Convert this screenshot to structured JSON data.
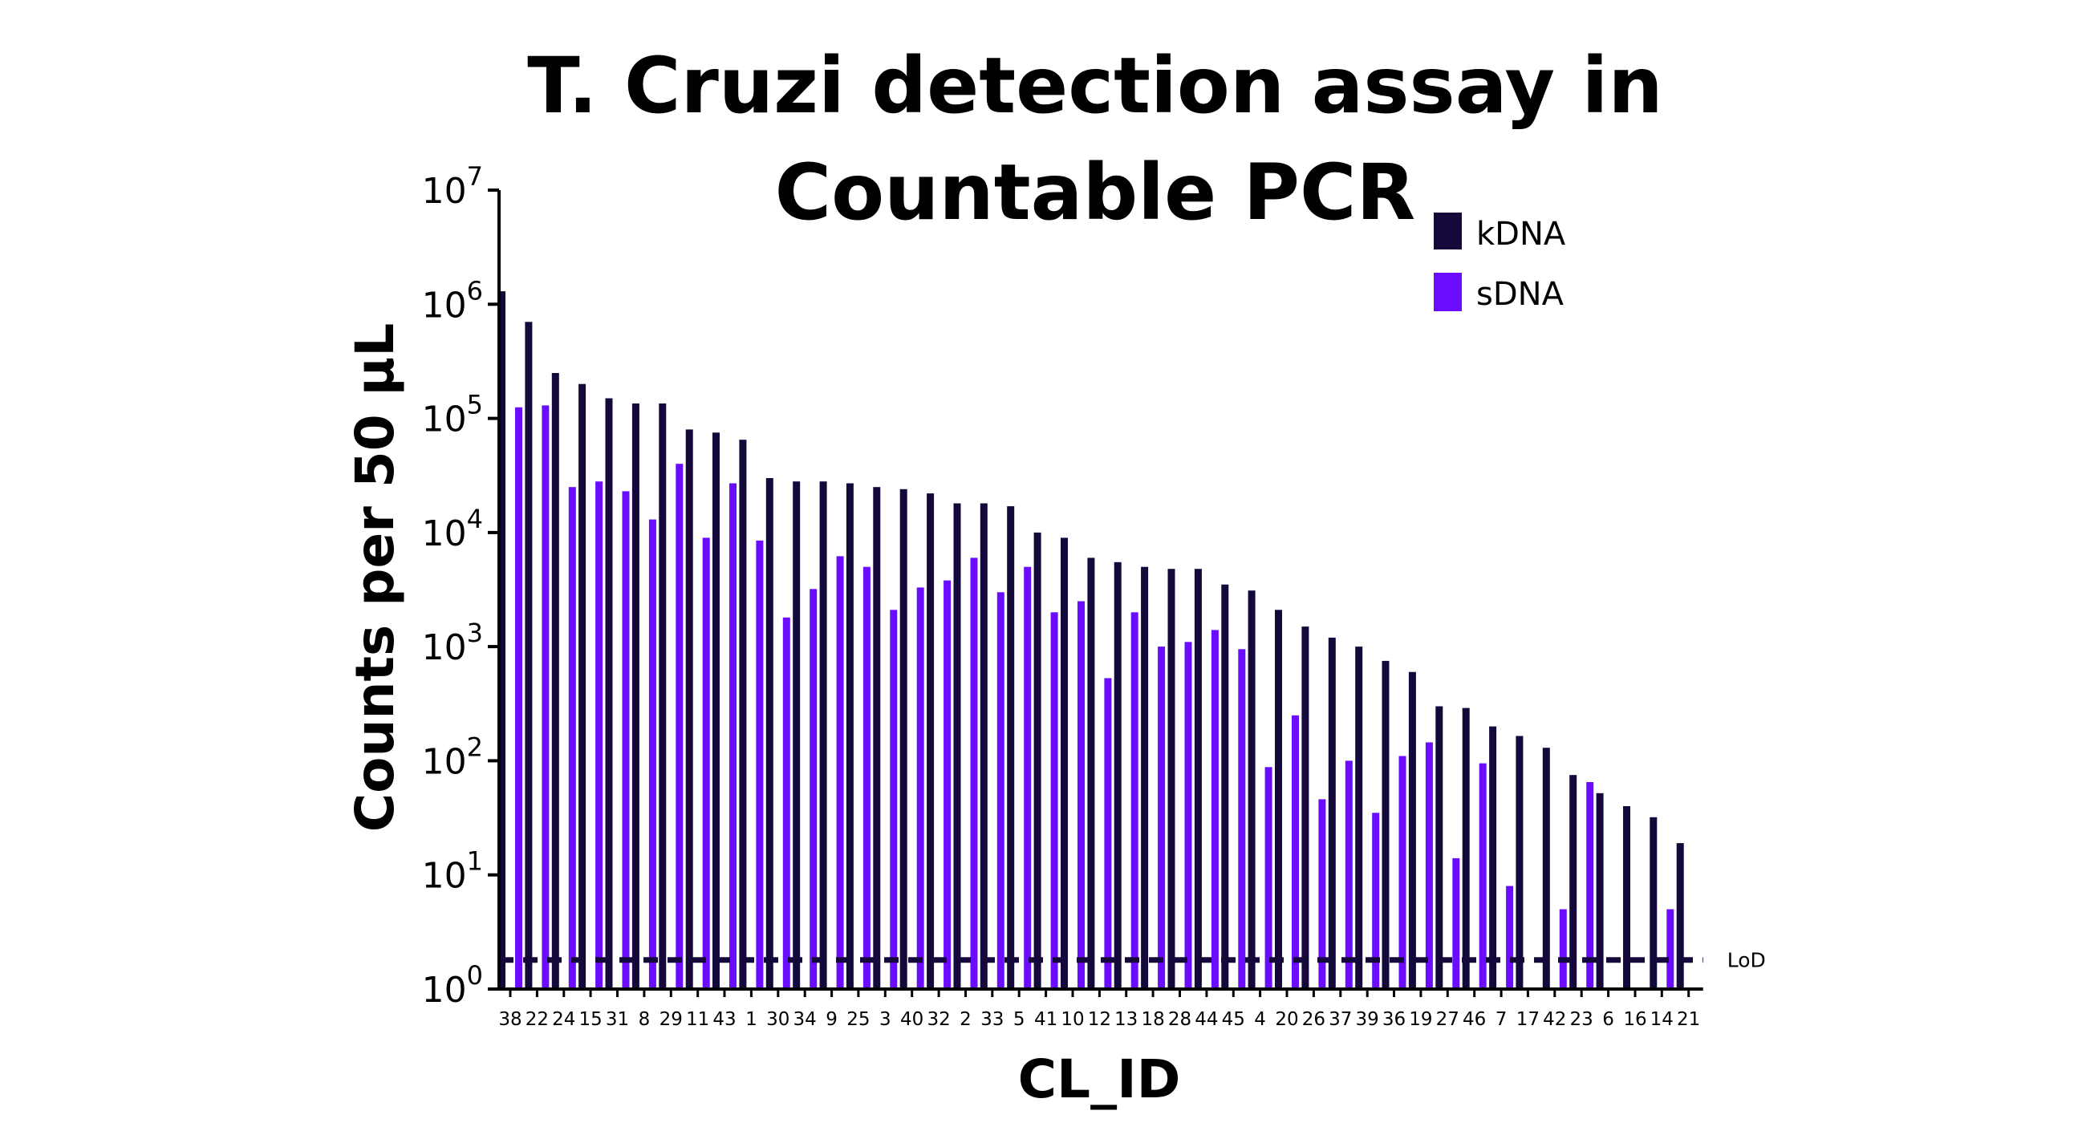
{
  "chart_data": {
    "type": "bar",
    "title_line1": "T. Cruzi detection assay in",
    "title_line2": "Countable PCR",
    "xlabel": "CL_ID",
    "ylabel": "Counts per 50 μL",
    "yscale": "log",
    "ylim": [
      1,
      10000000
    ],
    "ytick_base": "10",
    "ytick_exponents": [
      "0",
      "1",
      "2",
      "3",
      "4",
      "5",
      "6",
      "7"
    ],
    "legend_position": "top-right",
    "grid": false,
    "categories": [
      "38",
      "22",
      "24",
      "15",
      "31",
      "8",
      "29",
      "11",
      "43",
      "1",
      "30",
      "34",
      "9",
      "25",
      "3",
      "40",
      "32",
      "2",
      "33",
      "5",
      "41",
      "10",
      "12",
      "13",
      "18",
      "28",
      "44",
      "45",
      "4",
      "20",
      "26",
      "37",
      "39",
      "36",
      "19",
      "27",
      "46",
      "7",
      "17",
      "42",
      "23",
      "6",
      "16",
      "14",
      "21"
    ],
    "series": [
      {
        "name": "kDNA",
        "color": "#14093a",
        "values": [
          1300000,
          700000,
          250000,
          200000,
          150000,
          135000,
          135000,
          80000,
          75000,
          65000,
          30000,
          28000,
          28000,
          27000,
          25000,
          24000,
          22000,
          18000,
          18000,
          17000,
          10000,
          9000,
          6000,
          5500,
          5000,
          4800,
          4800,
          3500,
          3100,
          2100,
          1500,
          1200,
          1000,
          750,
          600,
          300,
          290,
          200,
          165,
          130,
          75,
          52,
          40,
          32,
          19
        ]
      },
      {
        "name": "sDNA",
        "color": "#6a0dff",
        "values": [
          125000,
          130000,
          25000,
          28000,
          23000,
          13000,
          40000,
          9000,
          27000,
          8500,
          1800,
          3200,
          6200,
          5000,
          2100,
          3300,
          3800,
          6000,
          3000,
          5000,
          2000,
          2500,
          530,
          2000,
          1000,
          1100,
          1400,
          950,
          88,
          250,
          46,
          100,
          35,
          110,
          145,
          14,
          95,
          8,
          null,
          5,
          65,
          null,
          null,
          5,
          null
        ]
      }
    ],
    "reference_line": {
      "label": "LoD",
      "value": 1.8
    }
  }
}
